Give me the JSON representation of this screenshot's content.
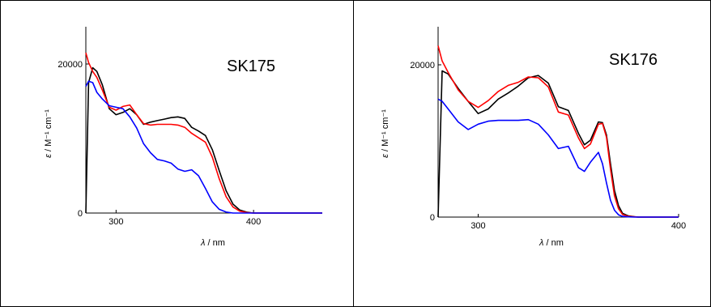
{
  "chart_data": [
    {
      "type": "line",
      "title": "SK175",
      "xlabel_symbol": "λ",
      "xlabel_unit": " / nm",
      "ylabel_symbol": "ε",
      "ylabel_unit": " / M⁻¹ cm⁻¹",
      "xlim": [
        278,
        450
      ],
      "ylim": [
        0,
        25000
      ],
      "xticks": [
        300,
        400
      ],
      "yticks": [
        0,
        20000
      ],
      "grid": false,
      "series": [
        {
          "color": "#000000",
          "x": [
            278,
            280,
            283,
            286,
            290,
            295,
            300,
            305,
            310,
            315,
            320,
            325,
            330,
            335,
            340,
            345,
            350,
            355,
            360,
            365,
            370,
            375,
            380,
            385,
            390,
            395,
            400,
            410,
            420,
            430,
            440,
            450
          ],
          "y": [
            0,
            17500,
            19500,
            19000,
            17200,
            14000,
            13200,
            13500,
            14000,
            13200,
            11900,
            12200,
            12400,
            12600,
            12800,
            12900,
            12700,
            11500,
            11000,
            10400,
            8500,
            5700,
            3000,
            1200,
            400,
            120,
            0,
            0,
            0,
            0,
            0,
            0
          ]
        },
        {
          "color": "#ff0000",
          "x": [
            278,
            280,
            283,
            286,
            290,
            295,
            300,
            305,
            310,
            315,
            320,
            325,
            330,
            335,
            340,
            345,
            350,
            355,
            360,
            365,
            370,
            375,
            380,
            385,
            390,
            395,
            400,
            410,
            420,
            430,
            440,
            450
          ],
          "y": [
            21500,
            20200,
            19000,
            18200,
            16500,
            14200,
            13800,
            14300,
            14500,
            13200,
            12000,
            11800,
            11900,
            11900,
            11900,
            11800,
            11500,
            10700,
            10100,
            9500,
            7500,
            4600,
            2200,
            800,
            250,
            60,
            0,
            0,
            0,
            0,
            0,
            0
          ]
        },
        {
          "color": "#0000ff",
          "x": [
            278,
            280,
            283,
            286,
            290,
            295,
            300,
            305,
            310,
            315,
            320,
            325,
            330,
            335,
            340,
            345,
            350,
            355,
            360,
            365,
            370,
            375,
            380,
            385,
            390,
            395,
            400,
            410,
            420,
            430,
            440,
            450
          ],
          "y": [
            17000,
            17700,
            17500,
            16200,
            15300,
            14400,
            14200,
            14000,
            12900,
            11400,
            9300,
            8100,
            7200,
            7000,
            6700,
            5900,
            5600,
            5800,
            5000,
            3300,
            1500,
            500,
            130,
            0,
            0,
            0,
            0,
            0,
            0,
            0,
            0,
            0
          ]
        }
      ]
    },
    {
      "type": "line",
      "title": "SK176",
      "xlabel_symbol": "λ",
      "xlabel_unit": " / nm",
      "ylabel_symbol": "ε",
      "ylabel_unit": " / M⁻¹ cm⁻¹",
      "xlim": [
        280,
        400
      ],
      "ylim": [
        0,
        25000
      ],
      "xticks": [
        300,
        400
      ],
      "yticks": [
        0,
        20000
      ],
      "grid": false,
      "series": [
        {
          "color": "#000000",
          "x": [
            280,
            282,
            285,
            290,
            295,
            300,
            305,
            310,
            315,
            320,
            325,
            330,
            335,
            340,
            345,
            350,
            353,
            356,
            360,
            362,
            364,
            366,
            368,
            370,
            372,
            375,
            378,
            380,
            385,
            390,
            395,
            400
          ],
          "y": [
            0,
            19200,
            18800,
            16900,
            15200,
            13600,
            14200,
            15500,
            16300,
            17200,
            18300,
            18600,
            17600,
            14500,
            14000,
            11000,
            9500,
            10100,
            12500,
            12400,
            10800,
            7000,
            3500,
            1500,
            500,
            150,
            40,
            0,
            0,
            0,
            0,
            0
          ]
        },
        {
          "color": "#ff0000",
          "x": [
            280,
            282,
            285,
            290,
            295,
            300,
            305,
            310,
            315,
            320,
            325,
            330,
            335,
            340,
            345,
            350,
            353,
            356,
            360,
            362,
            364,
            366,
            368,
            370,
            372,
            375,
            378,
            380,
            385,
            390,
            395,
            400
          ],
          "y": [
            22500,
            20500,
            19000,
            16700,
            15200,
            14400,
            15300,
            16500,
            17300,
            17700,
            18400,
            18300,
            17100,
            13800,
            13400,
            10400,
            9000,
            9600,
            12200,
            12300,
            10500,
            6300,
            2800,
            1100,
            350,
            100,
            30,
            0,
            0,
            0,
            0,
            0
          ]
        },
        {
          "color": "#0000ff",
          "x": [
            280,
            282,
            285,
            290,
            295,
            300,
            305,
            310,
            315,
            320,
            325,
            330,
            335,
            340,
            345,
            350,
            353,
            356,
            360,
            362,
            364,
            366,
            368,
            370,
            372,
            375,
            378,
            380,
            385,
            390,
            395,
            400
          ],
          "y": [
            15500,
            15200,
            14200,
            12500,
            11500,
            12200,
            12600,
            12700,
            12700,
            12700,
            12800,
            12200,
            10800,
            9000,
            9300,
            6500,
            6000,
            7200,
            8500,
            7000,
            4500,
            2200,
            900,
            300,
            100,
            30,
            0,
            0,
            0,
            0,
            0,
            0
          ]
        }
      ]
    }
  ]
}
